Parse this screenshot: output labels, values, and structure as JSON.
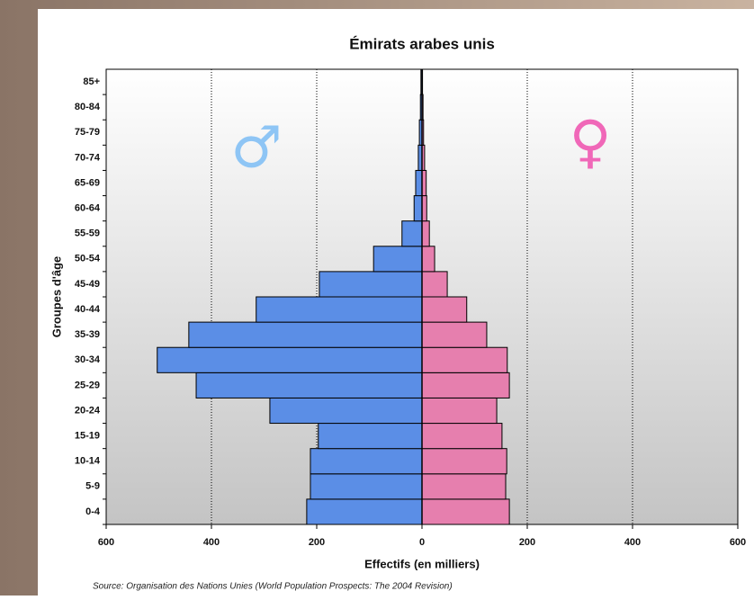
{
  "chart_data": {
    "type": "pyramid",
    "title": "Émirats arabes unis",
    "x_label": "Effectifs (en milliers)",
    "y_label": "Groupes d'âge",
    "source": "Source: Organisation des Nations Unies (World Population Prospects: The 2004 Revision)",
    "categories": [
      "0-4",
      "5-9",
      "10-14",
      "15-19",
      "20-24",
      "25-29",
      "30-34",
      "35-39",
      "40-44",
      "45-49",
      "50-54",
      "55-59",
      "60-64",
      "65-69",
      "70-74",
      "75-79",
      "80-84",
      "85+"
    ],
    "series": [
      {
        "name": "♂",
        "color": "#5b8ee6",
        "symbol_color": "#8ec5f5",
        "values": [
          -219,
          -212,
          -212,
          -197,
          -289,
          -429,
          -503,
          -443,
          -315,
          -195,
          -92,
          -38,
          -15,
          -12,
          -7,
          -5,
          -3,
          -2
        ]
      },
      {
        "name": "♀",
        "color": "#e67fae",
        "symbol_color": "#f068b8",
        "values": [
          166,
          159,
          161,
          152,
          142,
          166,
          162,
          123,
          85,
          48,
          24,
          14,
          9,
          8,
          5,
          3,
          2,
          1
        ]
      }
    ],
    "xlim": [
      -600,
      600
    ],
    "xticks": [
      {
        "value": -600,
        "label": "600"
      },
      {
        "value": -400,
        "label": "400"
      },
      {
        "value": -200,
        "label": "200"
      },
      0,
      200,
      400,
      600
    ],
    "grid": true
  }
}
